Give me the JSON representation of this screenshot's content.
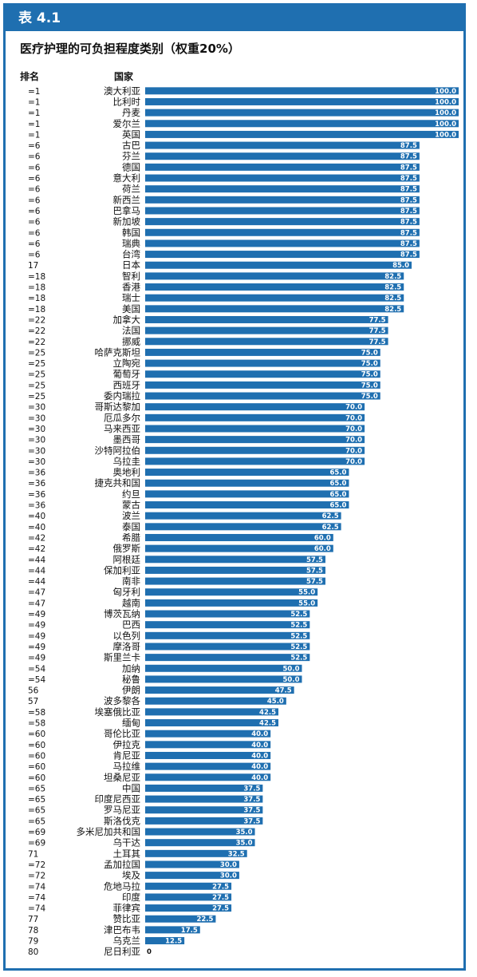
{
  "table_label": "表 4.1",
  "chart_data": {
    "type": "bar",
    "orientation": "horizontal",
    "title": "医疗护理的可负担程度类别（权重20%）",
    "rank_header": "排名",
    "country_header": "国家",
    "xlim": [
      0,
      100
    ],
    "grid": false,
    "bar_color": "#1f6fb0",
    "value_label_color": "#ffffff",
    "rows": [
      {
        "rank": "=1",
        "country": "澳大利亚",
        "value": 100.0,
        "label": "100.0"
      },
      {
        "rank": "=1",
        "country": "比利时",
        "value": 100.0,
        "label": "100.0"
      },
      {
        "rank": "=1",
        "country": "丹麦",
        "value": 100.0,
        "label": "100.0"
      },
      {
        "rank": "=1",
        "country": "爱尔兰",
        "value": 100.0,
        "label": "100.0"
      },
      {
        "rank": "=1",
        "country": "英国",
        "value": 100.0,
        "label": "100.0"
      },
      {
        "rank": "=6",
        "country": "古巴",
        "value": 87.5,
        "label": "87.5"
      },
      {
        "rank": "=6",
        "country": "芬兰",
        "value": 87.5,
        "label": "87.5"
      },
      {
        "rank": "=6",
        "country": "德国",
        "value": 87.5,
        "label": "87.5"
      },
      {
        "rank": "=6",
        "country": "意大利",
        "value": 87.5,
        "label": "87.5"
      },
      {
        "rank": "=6",
        "country": "荷兰",
        "value": 87.5,
        "label": "87.5"
      },
      {
        "rank": "=6",
        "country": "新西兰",
        "value": 87.5,
        "label": "87.5"
      },
      {
        "rank": "=6",
        "country": "巴拿马",
        "value": 87.5,
        "label": "87.5"
      },
      {
        "rank": "=6",
        "country": "新加坡",
        "value": 87.5,
        "label": "87.5"
      },
      {
        "rank": "=6",
        "country": "韩国",
        "value": 87.5,
        "label": "87.5"
      },
      {
        "rank": "=6",
        "country": "瑞典",
        "value": 87.5,
        "label": "87.5"
      },
      {
        "rank": "=6",
        "country": "台湾",
        "value": 87.5,
        "label": "87.5"
      },
      {
        "rank": "17",
        "country": "日本",
        "value": 85.0,
        "label": "85.0"
      },
      {
        "rank": "=18",
        "country": "智利",
        "value": 82.5,
        "label": "82.5"
      },
      {
        "rank": "=18",
        "country": "香港",
        "value": 82.5,
        "label": "82.5"
      },
      {
        "rank": "=18",
        "country": "瑞士",
        "value": 82.5,
        "label": "82.5"
      },
      {
        "rank": "=18",
        "country": "美国",
        "value": 82.5,
        "label": "82.5"
      },
      {
        "rank": "=22",
        "country": "加拿大",
        "value": 77.5,
        "label": "77.5"
      },
      {
        "rank": "=22",
        "country": "法国",
        "value": 77.5,
        "label": "77.5"
      },
      {
        "rank": "=22",
        "country": "挪威",
        "value": 77.5,
        "label": "77.5"
      },
      {
        "rank": "=25",
        "country": "哈萨克斯坦",
        "value": 75.0,
        "label": "75.0"
      },
      {
        "rank": "=25",
        "country": "立陶宛",
        "value": 75.0,
        "label": "75.0"
      },
      {
        "rank": "=25",
        "country": "葡萄牙",
        "value": 75.0,
        "label": "75.0"
      },
      {
        "rank": "=25",
        "country": "西班牙",
        "value": 75.0,
        "label": "75.0"
      },
      {
        "rank": "=25",
        "country": "委内瑞拉",
        "value": 75.0,
        "label": "75.0"
      },
      {
        "rank": "=30",
        "country": "哥斯达黎加",
        "value": 70.0,
        "label": "70.0"
      },
      {
        "rank": "=30",
        "country": "厄瓜多尔",
        "value": 70.0,
        "label": "70.0"
      },
      {
        "rank": "=30",
        "country": "马来西亚",
        "value": 70.0,
        "label": "70.0"
      },
      {
        "rank": "=30",
        "country": "墨西哥",
        "value": 70.0,
        "label": "70.0"
      },
      {
        "rank": "=30",
        "country": "沙特阿拉伯",
        "value": 70.0,
        "label": "70.0"
      },
      {
        "rank": "=30",
        "country": "乌拉圭",
        "value": 70.0,
        "label": "70.0"
      },
      {
        "rank": "=36",
        "country": "奥地利",
        "value": 65.0,
        "label": "65.0"
      },
      {
        "rank": "=36",
        "country": "捷克共和国",
        "value": 65.0,
        "label": "65.0"
      },
      {
        "rank": "=36",
        "country": "约旦",
        "value": 65.0,
        "label": "65.0"
      },
      {
        "rank": "=36",
        "country": "蒙古",
        "value": 65.0,
        "label": "65.0"
      },
      {
        "rank": "=40",
        "country": "波兰",
        "value": 62.5,
        "label": "62.5"
      },
      {
        "rank": "=40",
        "country": "泰国",
        "value": 62.5,
        "label": "62.5"
      },
      {
        "rank": "=42",
        "country": "希腊",
        "value": 60.0,
        "label": "60.0"
      },
      {
        "rank": "=42",
        "country": "俄罗斯",
        "value": 60.0,
        "label": "60.0"
      },
      {
        "rank": "=44",
        "country": "阿根廷",
        "value": 57.5,
        "label": "57.5"
      },
      {
        "rank": "=44",
        "country": "保加利亚",
        "value": 57.5,
        "label": "57.5"
      },
      {
        "rank": "=44",
        "country": "南非",
        "value": 57.5,
        "label": "57.5"
      },
      {
        "rank": "=47",
        "country": "匈牙利",
        "value": 55.0,
        "label": "55.0"
      },
      {
        "rank": "=47",
        "country": "越南",
        "value": 55.0,
        "label": "55.0"
      },
      {
        "rank": "=49",
        "country": "博茨瓦纳",
        "value": 52.5,
        "label": "52.5"
      },
      {
        "rank": "=49",
        "country": "巴西",
        "value": 52.5,
        "label": "52.5"
      },
      {
        "rank": "=49",
        "country": "以色列",
        "value": 52.5,
        "label": "52.5"
      },
      {
        "rank": "=49",
        "country": "摩洛哥",
        "value": 52.5,
        "label": "52.5"
      },
      {
        "rank": "=49",
        "country": "斯里兰卡",
        "value": 52.5,
        "label": "52.5"
      },
      {
        "rank": "=54",
        "country": "加纳",
        "value": 50.0,
        "label": "50.0"
      },
      {
        "rank": "=54",
        "country": "秘鲁",
        "value": 50.0,
        "label": "50.0"
      },
      {
        "rank": "56",
        "country": "伊朗",
        "value": 47.5,
        "label": "47.5"
      },
      {
        "rank": "57",
        "country": "波多黎各",
        "value": 45.0,
        "label": "45.0"
      },
      {
        "rank": "=58",
        "country": "埃塞俄比亚",
        "value": 42.5,
        "label": "42.5"
      },
      {
        "rank": "=58",
        "country": "缅甸",
        "value": 42.5,
        "label": "42.5"
      },
      {
        "rank": "=60",
        "country": "哥伦比亚",
        "value": 40.0,
        "label": "40.0"
      },
      {
        "rank": "=60",
        "country": "伊拉克",
        "value": 40.0,
        "label": "40.0"
      },
      {
        "rank": "=60",
        "country": "肯尼亚",
        "value": 40.0,
        "label": "40.0"
      },
      {
        "rank": "=60",
        "country": "马拉维",
        "value": 40.0,
        "label": "40.0"
      },
      {
        "rank": "=60",
        "country": "坦桑尼亚",
        "value": 40.0,
        "label": "40.0"
      },
      {
        "rank": "=65",
        "country": "中国",
        "value": 37.5,
        "label": "37.5"
      },
      {
        "rank": "=65",
        "country": "印度尼西亚",
        "value": 37.5,
        "label": "37.5"
      },
      {
        "rank": "=65",
        "country": "罗马尼亚",
        "value": 37.5,
        "label": "37.5"
      },
      {
        "rank": "=65",
        "country": "斯洛伐克",
        "value": 37.5,
        "label": "37.5"
      },
      {
        "rank": "=69",
        "country": "多米尼加共和国",
        "value": 35.0,
        "label": "35.0"
      },
      {
        "rank": "=69",
        "country": "乌干达",
        "value": 35.0,
        "label": "35.0"
      },
      {
        "rank": "71",
        "country": "土耳其",
        "value": 32.5,
        "label": "32.5"
      },
      {
        "rank": "=72",
        "country": "孟加拉国",
        "value": 30.0,
        "label": "30.0"
      },
      {
        "rank": "=72",
        "country": "埃及",
        "value": 30.0,
        "label": "30.0"
      },
      {
        "rank": "=74",
        "country": "危地马拉",
        "value": 27.5,
        "label": "27.5"
      },
      {
        "rank": "=74",
        "country": "印度",
        "value": 27.5,
        "label": "27.5"
      },
      {
        "rank": "=74",
        "country": "菲律宾",
        "value": 27.5,
        "label": "27.5"
      },
      {
        "rank": "77",
        "country": "赞比亚",
        "value": 22.5,
        "label": "22.5"
      },
      {
        "rank": "78",
        "country": "津巴布韦",
        "value": 17.5,
        "label": "17.5"
      },
      {
        "rank": "79",
        "country": "乌克兰",
        "value": 12.5,
        "label": "12.5"
      },
      {
        "rank": "80",
        "country": "尼日利亚",
        "value": 0,
        "label": "0"
      }
    ]
  }
}
